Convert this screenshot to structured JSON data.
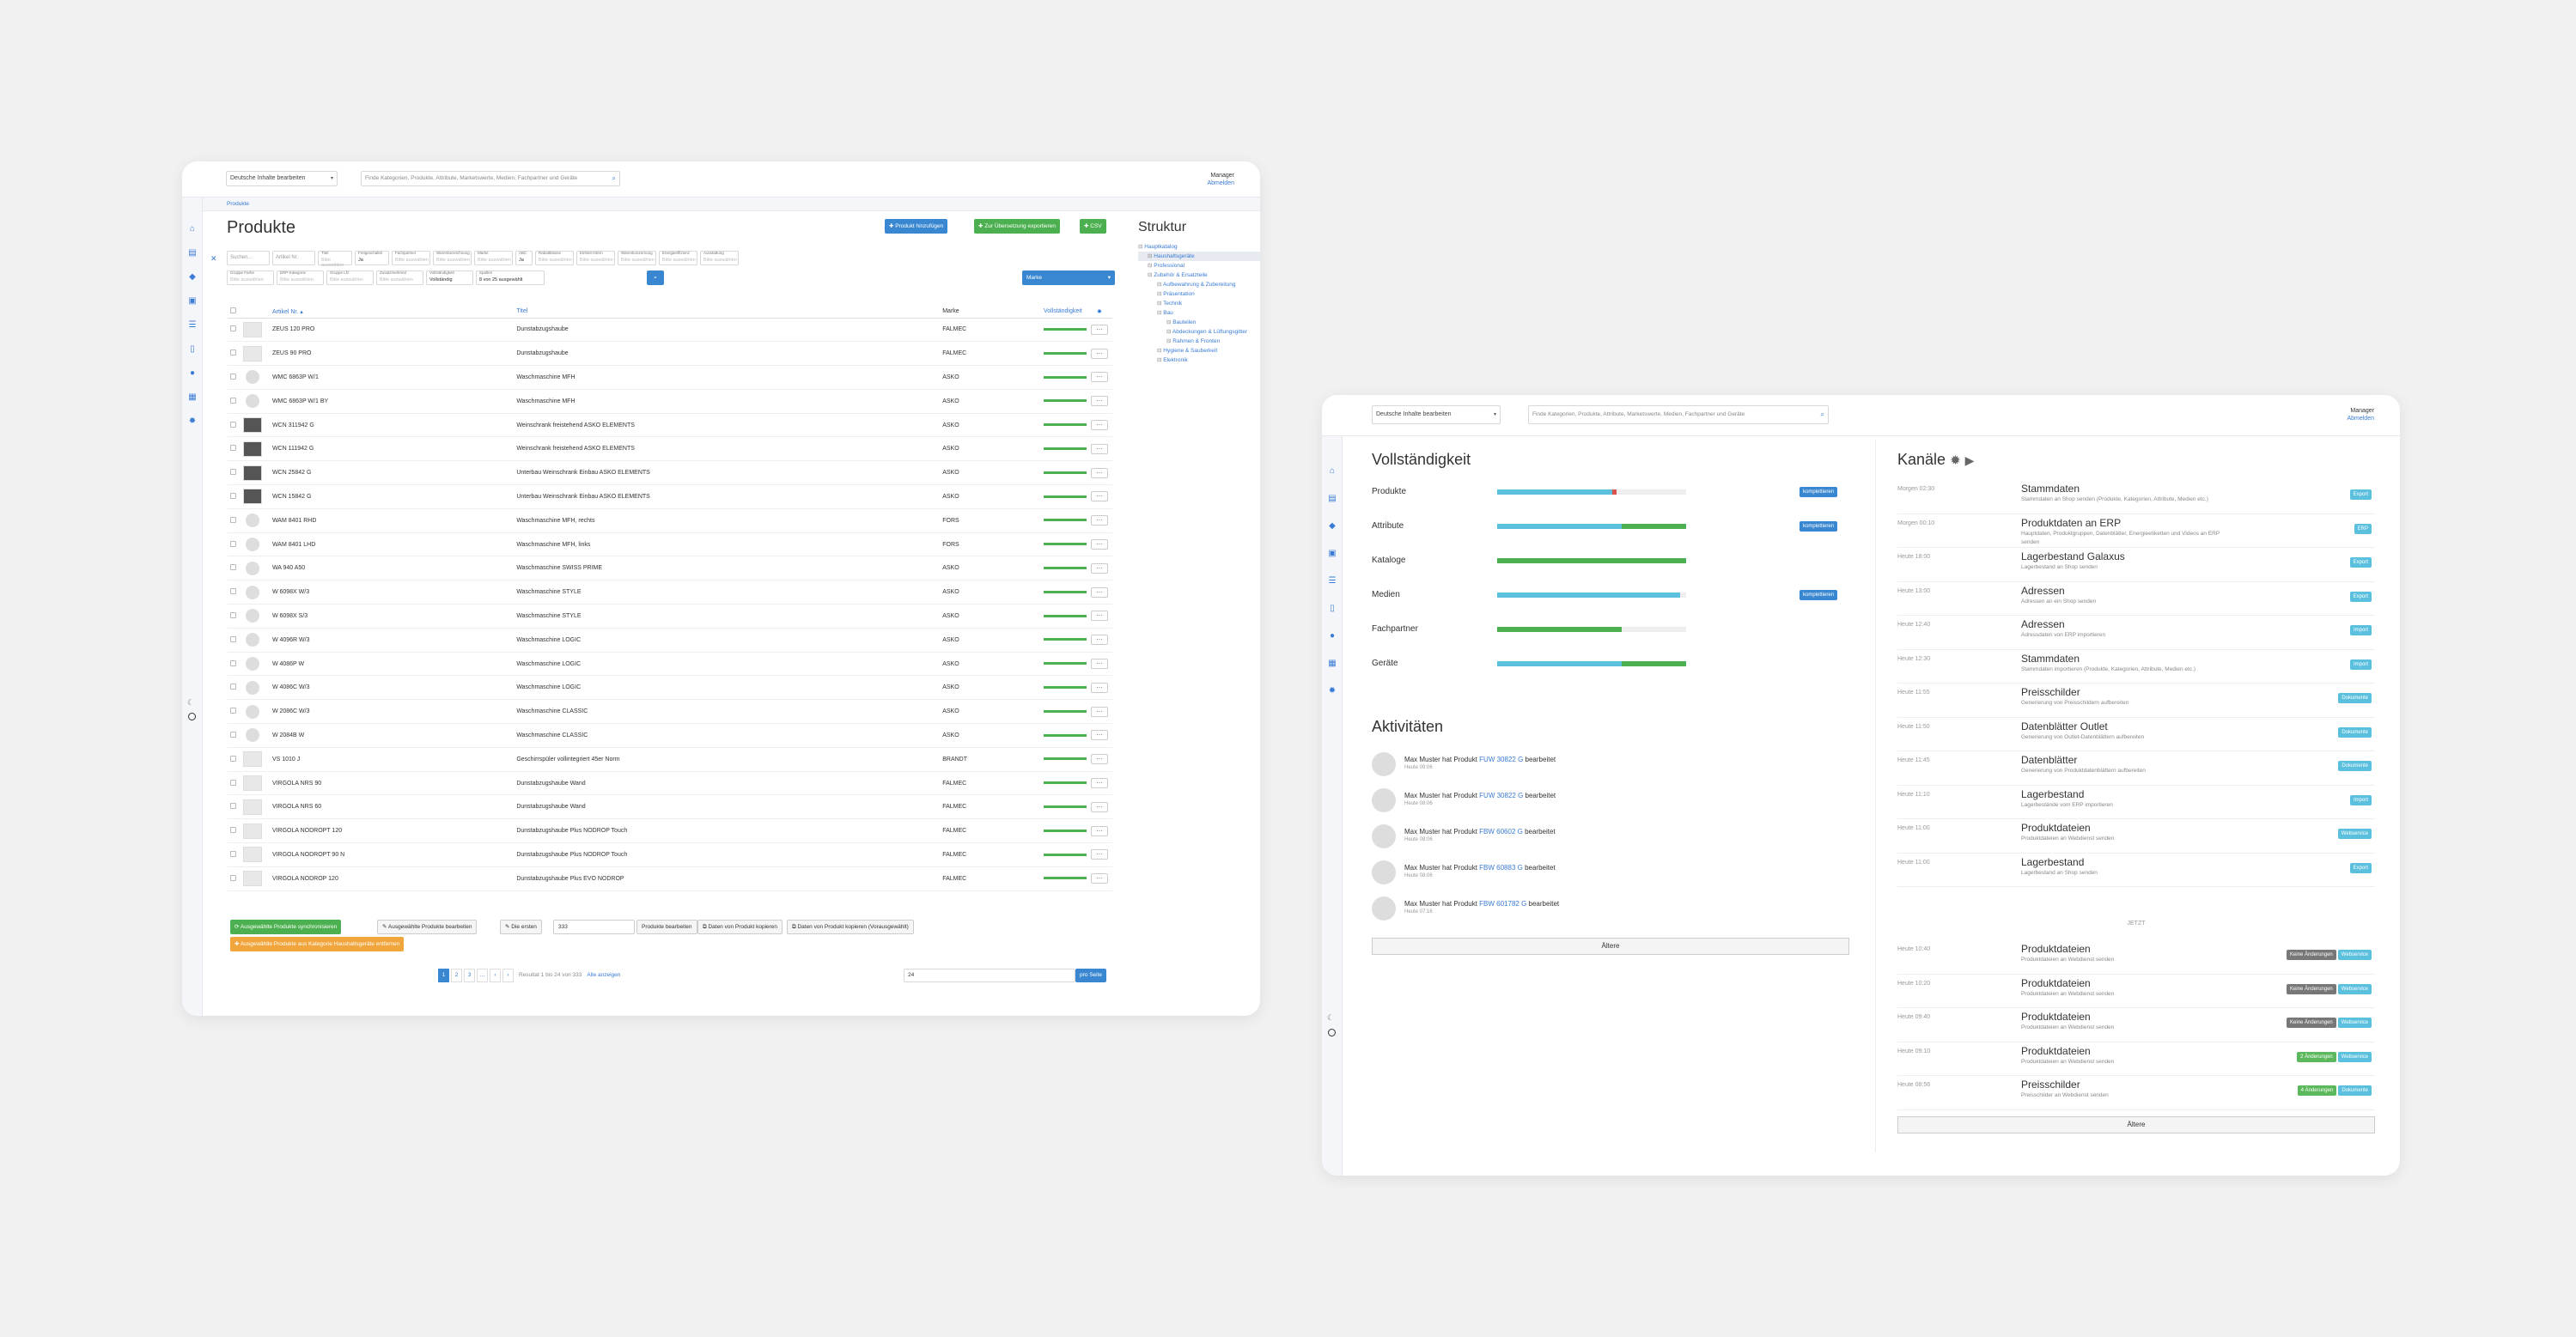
{
  "window1": {
    "lang_select": "Deutsche Inhalte bearbeiten",
    "search_placeholder": "Finde Kategorien, Produkte, Attribute, Marketswerte, Medien, Fachpartner und Geräte",
    "user": {
      "name": "Manager",
      "link": "Abmelden"
    },
    "breadcrumb": "Produkte",
    "title": "Produkte",
    "actions": {
      "add": "Produkt hinzufügen",
      "translate": "Zur Übersetzung exportieren",
      "csv": "CSV"
    },
    "filters_row1": [
      {
        "label": "",
        "value": "Suchen..."
      },
      {
        "label": "",
        "value": "Artikel Nr."
      },
      {
        "label": "Titel",
        "value": "Bitte auswählen"
      },
      {
        "label": "Freigeschaltet",
        "value": "Ja"
      },
      {
        "label": "Fachpartner",
        "value": "Bitte auswählen"
      },
      {
        "label": "Warenbezeichnung",
        "value": "Bitte auswählen"
      },
      {
        "label": "Marke",
        "value": "Bitte auswählen"
      },
      {
        "label": "ABC",
        "value": "Ja"
      },
      {
        "label": "Rabattklasse",
        "value": "Bitte auswählen"
      },
      {
        "label": "Einheit-Intern",
        "value": "Bitte auswählen"
      },
      {
        "label": "Warenkonzernung",
        "value": "Bitte auswählen"
      },
      {
        "label": "Energieeffizienz",
        "value": "Bitte auswählen"
      },
      {
        "label": "Ausstattung",
        "value": "Bitte auswählen"
      }
    ],
    "filters_row2": [
      {
        "label": "Gruppe Farbe",
        "value": "Bitte auswählen"
      },
      {
        "label": "ERP-Kategorie",
        "value": "Bitte auswählen"
      },
      {
        "label": "Gruppe Lfz",
        "value": "Bitte auswählen"
      },
      {
        "label": "Zusatzmerkmal",
        "value": "Bitte auswählen"
      },
      {
        "label": "Vollständigkeit",
        "value": "Vollständig"
      },
      {
        "label": "Spalten",
        "value": "8 von 25 ausgewählt"
      }
    ],
    "marke_select": "Marke",
    "table": {
      "headers": {
        "article": "Artikel Nr.",
        "title": "Titel",
        "brand": "Marke",
        "completeness": "Vollständigkeit"
      },
      "rows": [
        {
          "article": "ZEUS 120 PRO",
          "title": "Dunstabzugshaube",
          "brand": "FALMEC"
        },
        {
          "article": "ZEUS 90 PRO",
          "title": "Dunstabzugshaube",
          "brand": "FALMEC"
        },
        {
          "article": "WMC 6863P W/1",
          "title": "Waschmaschine MFH",
          "brand": "ASKO"
        },
        {
          "article": "WMC 6863P W/1 BY",
          "title": "Waschmaschine MFH",
          "brand": "ASKO"
        },
        {
          "article": "WCN 311942 G",
          "title": "Weinschrank freistehend ASKO ELEMENTS",
          "brand": "ASKO"
        },
        {
          "article": "WCN 111942 G",
          "title": "Weinschrank freistehend ASKO ELEMENTS",
          "brand": "ASKO"
        },
        {
          "article": "WCN 25842 G",
          "title": "Unterbau Weinschrank Einbau ASKO ELEMENTS",
          "brand": "ASKO"
        },
        {
          "article": "WCN 15842 G",
          "title": "Unterbau Weinschrank Einbau ASKO ELEMENTS",
          "brand": "ASKO"
        },
        {
          "article": "WAM 8401 RHD",
          "title": "Waschmaschine MFH, rechts",
          "brand": "FORS"
        },
        {
          "article": "WAM 8401 LHD",
          "title": "Waschmaschine MFH, links",
          "brand": "FORS"
        },
        {
          "article": "WA 940 A50",
          "title": "Waschmaschine SWISS PRIME",
          "brand": "ASKO"
        },
        {
          "article": "W 6098X W/3",
          "title": "Waschmaschine STYLE",
          "brand": "ASKO"
        },
        {
          "article": "W 6098X S/3",
          "title": "Waschmaschine STYLE",
          "brand": "ASKO"
        },
        {
          "article": "W 4096R W/3",
          "title": "Waschmaschine LOGIC",
          "brand": "ASKO"
        },
        {
          "article": "W 4086P W",
          "title": "Waschmaschine LOGIC",
          "brand": "ASKO"
        },
        {
          "article": "W 4086C W/3",
          "title": "Waschmaschine LOGIC",
          "brand": "ASKO"
        },
        {
          "article": "W 2086C W/3",
          "title": "Waschmaschine CLASSIC",
          "brand": "ASKO"
        },
        {
          "article": "W 2084B W",
          "title": "Waschmaschine CLASSIC",
          "brand": "ASKO"
        },
        {
          "article": "VS 1010 J",
          "title": "Geschirrspüler vollintegriert 45er Norm",
          "brand": "BRANDT"
        },
        {
          "article": "VIRGOLA NRS 90",
          "title": "Dunstabzugshaube Wand",
          "brand": "FALMEC"
        },
        {
          "article": "VIRGOLA NRS 60",
          "title": "Dunstabzugshaube Wand",
          "brand": "FALMEC"
        },
        {
          "article": "VIRGOLA NODROPT 120",
          "title": "Dunstabzugshaube Plus NODROP Touch",
          "brand": "FALMEC"
        },
        {
          "article": "VIRGOLA NODROPT 90 N",
          "title": "Dunstabzugshaube Plus NODROP Touch",
          "brand": "FALMEC"
        },
        {
          "article": "VIRGOLA NODROP 120",
          "title": "Dunstabzugshaube Plus EVO NODROP",
          "brand": "FALMEC"
        }
      ]
    },
    "bulk": {
      "sync": "Ausgewählte Produkte synchronisieren",
      "edit": "Ausgewählte Produkte bearbeiten",
      "first": "Die ersten",
      "first_value": "333",
      "edit_products": "Produkte bearbeiten",
      "copy": "Daten von Produkt kopieren",
      "copy_pre": "Daten von Produkt kopieren (Vorausgewählt)",
      "remove": "Ausgewählte Produkte aus Kategorie Haushaltsgeräte entfernen"
    },
    "pager": {
      "pages": [
        "1",
        "2",
        "3",
        "...",
        "‹",
        "›"
      ],
      "info": "Resultat 1 bis 24 von 333",
      "show_all": "Alle anzeigen",
      "per_page_value": "24",
      "per_page": "pro Seite"
    },
    "structure": {
      "title": "Struktur",
      "items": [
        {
          "label": "Hauptkatalog",
          "indent": 0
        },
        {
          "label": "Haushaltsgeräte",
          "indent": 1,
          "selected": true
        },
        {
          "label": "Professional",
          "indent": 1
        },
        {
          "label": "Zubehör & Ersatzteile",
          "indent": 1
        },
        {
          "label": "Aufbewahrung & Zubereitung",
          "indent": 2
        },
        {
          "label": "Präsentation",
          "indent": 2
        },
        {
          "label": "Technik",
          "indent": 2
        },
        {
          "label": "Bau",
          "indent": 2
        },
        {
          "label": "Bauteilen",
          "indent": 3
        },
        {
          "label": "Abdeckungen & Lüftungsgitter",
          "indent": 3
        },
        {
          "label": "Rahmen & Fronten",
          "indent": 3
        },
        {
          "label": "Hygiene & Sauberkeit",
          "indent": 2
        },
        {
          "label": "Elektronik",
          "indent": 2
        }
      ]
    }
  },
  "window2": {
    "lang_select": "Deutsche Inhalte bearbeiten",
    "search_placeholder": "Finde Kategorien, Produkte, Attribute, Marketswerte, Medien, Fachpartner und Geräte",
    "user": {
      "name": "Manager",
      "link": "Abmelden"
    },
    "completeness": {
      "title": "Vollständigkeit",
      "rows": [
        {
          "label": "Produkte",
          "blue": 0.61,
          "red": 0.02,
          "green": 0,
          "badge": "komplettieren"
        },
        {
          "label": "Attribute",
          "blue": 0.66,
          "red": 0,
          "green": 0.34,
          "badge": "komplettieren"
        },
        {
          "label": "Kataloge",
          "blue": 0,
          "red": 0,
          "green": 1.0,
          "badge": ""
        },
        {
          "label": "Medien",
          "blue": 0.97,
          "red": 0,
          "green": 0,
          "badge": "komplettieren"
        },
        {
          "label": "Fachpartner",
          "blue": 0,
          "red": 0,
          "green": 0.66,
          "badge": ""
        },
        {
          "label": "Geräte",
          "blue": 0.66,
          "red": 0,
          "green": 0.34,
          "badge": ""
        }
      ]
    },
    "activities": {
      "title": "Aktivitäten",
      "prefix": "Max Muster hat Produkt",
      "suffix": "bearbeitet",
      "items": [
        {
          "product": "FUW 30822 G",
          "time": "Heute 09:06"
        },
        {
          "product": "FUW 30822 G",
          "time": "Heute 08:06"
        },
        {
          "product": "FBW 60602 G",
          "time": "Heute 08:06"
        },
        {
          "product": "FBW 60883 G",
          "time": "Heute 08:06"
        },
        {
          "product": "FBW 601782 G",
          "time": "Heute 07:16"
        }
      ],
      "older": "Ältere"
    },
    "channels": {
      "title": "Kanäle",
      "items": [
        {
          "time": "Morgen 02:30",
          "title": "Stammdaten",
          "desc": "Stammdaten an Shop senden (Produkte, Kategorien, Attribute, Medien etc.)",
          "badges": [
            {
              "t": "Export",
              "c": "cyan"
            }
          ]
        },
        {
          "time": "Morgen 00:10",
          "title": "Produktdaten an ERP",
          "desc": "Hauptdaten, Produktgruppen, Datenblätter, Energieetiketten und Videos an ERP senden",
          "badges": [
            {
              "t": "ERP",
              "c": "cyan"
            }
          ]
        },
        {
          "time": "Heute 18:00",
          "title": "Lagerbestand Galaxus",
          "desc": "Lagerbestand an Shop senden",
          "badges": [
            {
              "t": "Export",
              "c": "cyan"
            }
          ]
        },
        {
          "time": "Heute 13:00",
          "title": "Adressen",
          "desc": "Adressen an ein Shop senden",
          "badges": [
            {
              "t": "Export",
              "c": "cyan"
            }
          ]
        },
        {
          "time": "Heute 12:40",
          "title": "Adressen",
          "desc": "Adressdaten von ERP importieren",
          "badges": [
            {
              "t": "Import",
              "c": "cyan"
            }
          ]
        },
        {
          "time": "Heute 12:30",
          "title": "Stammdaten",
          "desc": "Stammdaten importieren (Produkte, Kategorien, Attribute, Medien etc.)",
          "badges": [
            {
              "t": "Import",
              "c": "cyan"
            }
          ]
        },
        {
          "time": "Heute 11:55",
          "title": "Preisschilder",
          "desc": "Generierung von Preisschildern aufbereiten",
          "badges": [
            {
              "t": "Dokumente",
              "c": "cyan"
            }
          ]
        },
        {
          "time": "Heute 11:50",
          "title": "Datenblätter Outlet",
          "desc": "Generierung von Outlet-Datenblättern aufbereiten",
          "badges": [
            {
              "t": "Dokumente",
              "c": "cyan"
            }
          ]
        },
        {
          "time": "Heute 11:45",
          "title": "Datenblätter",
          "desc": "Generierung von Produktdatenblättern aufbereiten",
          "badges": [
            {
              "t": "Dokumente",
              "c": "cyan"
            }
          ]
        },
        {
          "time": "Heute 11:10",
          "title": "Lagerbestand",
          "desc": "Lagerbestände vom ERP importieren",
          "badges": [
            {
              "t": "Import",
              "c": "cyan"
            }
          ]
        },
        {
          "time": "Heute 11:00",
          "title": "Produktdateien",
          "desc": "Produktdateien an Webdienst senden",
          "badges": [
            {
              "t": "Webservice",
              "c": "cyan"
            }
          ]
        },
        {
          "time": "Heute 11:00",
          "title": "Lagerbestand",
          "desc": "Lagerbestand an Shop senden",
          "badges": [
            {
              "t": "Export",
              "c": "cyan"
            }
          ]
        }
      ],
      "jetzt": "JETZT",
      "past": [
        {
          "time": "Heute 10:40",
          "title": "Produktdateien",
          "desc": "Produktdateien an Webdienst senden",
          "badges": [
            {
              "t": "Keine Änderungen",
              "c": "gray"
            },
            {
              "t": "Webservice",
              "c": "cyan"
            }
          ]
        },
        {
          "time": "Heute 10:20",
          "title": "Produktdateien",
          "desc": "Produktdateien an Webdienst senden",
          "badges": [
            {
              "t": "Keine Änderungen",
              "c": "gray"
            },
            {
              "t": "Webservice",
              "c": "cyan"
            }
          ]
        },
        {
          "time": "Heute 09:40",
          "title": "Produktdateien",
          "desc": "Produktdateien an Webdienst senden",
          "badges": [
            {
              "t": "Keine Änderungen",
              "c": "gray"
            },
            {
              "t": "Webservice",
              "c": "cyan"
            }
          ]
        },
        {
          "time": "Heute 09:10",
          "title": "Produktdateien",
          "desc": "Produktdateien an Webdienst senden",
          "badges": [
            {
              "t": "2 Änderungen",
              "c": "green"
            },
            {
              "t": "Webservice",
              "c": "cyan"
            }
          ]
        },
        {
          "time": "Heute 08:56",
          "title": "Preisschilder",
          "desc": "Preisschilder an Webdienst senden",
          "badges": [
            {
              "t": "4 Änderungen",
              "c": "green"
            },
            {
              "t": "Dokumente",
              "c": "cyan"
            }
          ]
        }
      ],
      "older": "Ältere"
    },
    "colors": {
      "blue": "#5bc0de",
      "green": "#4caf50",
      "red": "#d9534f"
    }
  }
}
